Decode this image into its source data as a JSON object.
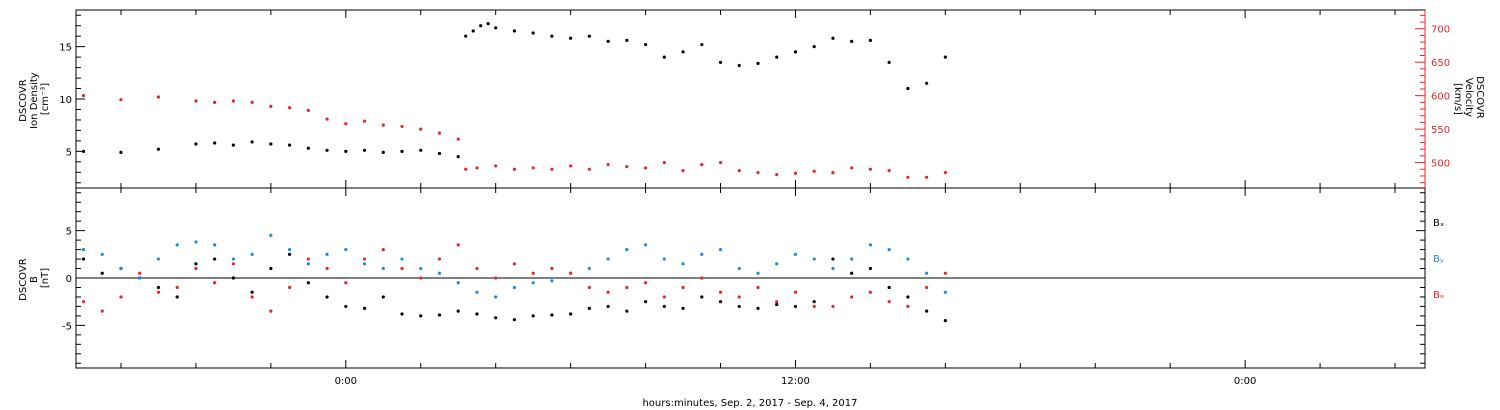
{
  "chart_data": [
    {
      "type": "scatter",
      "panel": "plasma",
      "y_left_label": [
        "DSCOVR",
        "Ion Density",
        "[cm⁻³]"
      ],
      "y_right_label": [
        "DSCOVR",
        "Velocity",
        "[km/s]"
      ],
      "x_range_hours": [
        -7.2,
        28.8
      ],
      "y_left_range": [
        1.5,
        18.5
      ],
      "y_right_range": [
        462,
        728
      ],
      "y_left_ticks": [
        "5",
        "10",
        "15"
      ],
      "y_right_ticks": [
        "500",
        "550",
        "600",
        "650",
        "700"
      ],
      "colors": {
        "density": "#000000",
        "velocity": "#e8262a"
      },
      "series": [
        {
          "axis": "left",
          "x": [
            -7.0,
            -6.0,
            -5.0,
            -4.0,
            -3.5,
            -3.0,
            -2.5,
            -2.0,
            -1.5,
            -1.0,
            -0.5,
            0.0,
            0.5,
            1.0,
            1.5,
            2.0,
            2.5,
            3.0,
            3.2,
            3.4,
            3.6,
            3.8,
            4.0,
            4.5,
            5.0,
            5.5,
            6.0,
            6.5,
            7.0,
            7.5,
            8.0,
            8.5,
            9.0,
            9.5,
            10.0,
            10.5,
            11.0,
            11.5,
            12.0,
            12.5,
            13.0,
            13.5,
            14.0,
            14.5,
            15.0,
            15.5,
            16.0
          ],
          "y": [
            5.0,
            4.9,
            5.2,
            5.7,
            5.8,
            5.6,
            5.9,
            5.7,
            5.6,
            5.3,
            5.1,
            5.0,
            5.1,
            4.9,
            5.0,
            5.1,
            4.8,
            4.5,
            16.0,
            16.5,
            17.0,
            17.2,
            16.8,
            16.5,
            16.3,
            16.0,
            15.8,
            16.0,
            15.5,
            15.6,
            15.2,
            14.0,
            14.5,
            15.2,
            13.5,
            13.2,
            13.4,
            14.0,
            14.5,
            15.0,
            15.8,
            15.5,
            15.6,
            13.5,
            11.0,
            11.5,
            14.0
          ]
        },
        {
          "axis": "right",
          "x": [
            -7.0,
            -6.0,
            -5.0,
            -4.0,
            -3.5,
            -3.0,
            -2.5,
            -2.0,
            -1.5,
            -1.0,
            -0.5,
            0.0,
            0.5,
            1.0,
            1.5,
            2.0,
            2.5,
            3.0,
            3.2,
            3.5,
            4.0,
            4.5,
            5.0,
            5.5,
            6.0,
            6.5,
            7.0,
            7.5,
            8.0,
            8.5,
            9.0,
            9.5,
            10.0,
            10.5,
            11.0,
            11.5,
            12.0,
            12.5,
            13.0,
            13.5,
            14.0,
            14.5,
            15.0,
            15.5,
            16.0
          ],
          "y": [
            600,
            594,
            598,
            592,
            590,
            592,
            590,
            584,
            582,
            578,
            565,
            558,
            562,
            556,
            554,
            550,
            544,
            535,
            490,
            492,
            495,
            490,
            492,
            490,
            495,
            490,
            497,
            494,
            492,
            500,
            488,
            497,
            500,
            488,
            485,
            482,
            484,
            487,
            485,
            492,
            490,
            488,
            478,
            478,
            485
          ]
        }
      ]
    },
    {
      "type": "scatter",
      "panel": "magnetic-field",
      "y_label": [
        "DSCOVR",
        "B",
        "[nT]"
      ],
      "x_range_hours": [
        -7.2,
        28.8
      ],
      "y_range": [
        -9.5,
        9.5
      ],
      "y_ticks": [
        "-5",
        "0",
        "5"
      ],
      "legend": [
        "Bₓ",
        "Bᵧ",
        "Bₔ"
      ],
      "x_ticks": [
        "0:00",
        "12:00",
        "0:00"
      ],
      "x_tick_hours": [
        0,
        12,
        24
      ],
      "x_label": "hours:minutes, Sep.  2, 2017 - Sep.  4, 2017",
      "colors": {
        "Bx": "#000000",
        "By": "#1e88e5",
        "Bz": "#e8262a"
      },
      "series": [
        {
          "name": "Bx",
          "x": [
            -7.0,
            -6.5,
            -6.0,
            -5.5,
            -5.0,
            -4.5,
            -4.0,
            -3.5,
            -3.0,
            -2.5,
            -2.0,
            -1.5,
            -1.0,
            -0.5,
            0.0,
            0.5,
            1.0,
            1.5,
            2.0,
            2.5,
            3.0,
            3.5,
            4.0,
            4.5,
            5.0,
            5.5,
            6.0,
            6.5,
            7.0,
            7.5,
            8.0,
            8.5,
            9.0,
            9.5,
            10.0,
            10.5,
            11.0,
            11.5,
            12.0,
            12.5,
            13.0,
            13.5,
            14.0,
            14.5,
            15.0,
            15.5,
            16.0
          ],
          "y": [
            2.0,
            0.5,
            1.0,
            0.0,
            -1.0,
            -2.0,
            1.5,
            2.0,
            0.0,
            -1.5,
            1.0,
            2.5,
            -0.5,
            -2.0,
            -3.0,
            -3.2,
            -2.0,
            -3.8,
            -4.0,
            -3.9,
            -3.5,
            -3.8,
            -4.2,
            -4.4,
            -4.0,
            -3.9,
            -3.8,
            -3.2,
            -3.0,
            -3.5,
            -2.5,
            -3.0,
            -3.2,
            -2.0,
            -2.5,
            -3.0,
            -3.2,
            -2.8,
            -3.0,
            -2.5,
            2.0,
            0.5,
            1.0,
            -1.0,
            -2.0,
            -3.5,
            -4.5
          ]
        },
        {
          "name": "By",
          "x": [
            -7.0,
            -6.5,
            -6.0,
            -5.5,
            -5.0,
            -4.5,
            -4.0,
            -3.5,
            -3.0,
            -2.5,
            -2.0,
            -1.5,
            -1.0,
            -0.5,
            0.0,
            0.5,
            1.0,
            1.5,
            2.0,
            2.5,
            3.0,
            3.5,
            4.0,
            4.5,
            5.0,
            5.5,
            6.0,
            6.5,
            7.0,
            7.5,
            8.0,
            8.5,
            9.0,
            9.5,
            10.0,
            10.5,
            11.0,
            11.5,
            12.0,
            12.5,
            13.0,
            13.5,
            14.0,
            14.5,
            15.0,
            15.5,
            16.0
          ],
          "y": [
            3.0,
            2.5,
            1.0,
            0.0,
            2.0,
            3.5,
            3.8,
            3.5,
            2.0,
            2.5,
            4.5,
            3.0,
            1.5,
            2.5,
            3.0,
            1.5,
            1.0,
            2.0,
            1.0,
            0.5,
            -0.5,
            -1.5,
            -2.0,
            -1.0,
            -0.5,
            -0.3,
            0.5,
            1.0,
            2.0,
            3.0,
            3.5,
            2.0,
            1.5,
            2.5,
            3.0,
            1.0,
            0.5,
            1.5,
            2.5,
            2.0,
            1.0,
            2.0,
            3.5,
            3.0,
            2.0,
            0.5,
            -1.5
          ]
        },
        {
          "name": "Bz",
          "x": [
            -7.0,
            -6.5,
            -6.0,
            -5.5,
            -5.0,
            -4.5,
            -4.0,
            -3.5,
            -3.0,
            -2.5,
            -2.0,
            -1.5,
            -1.0,
            -0.5,
            0.0,
            0.5,
            1.0,
            1.5,
            2.0,
            2.5,
            3.0,
            3.5,
            4.0,
            4.5,
            5.0,
            5.5,
            6.0,
            6.5,
            7.0,
            7.5,
            8.0,
            8.5,
            9.0,
            9.5,
            10.0,
            10.5,
            11.0,
            11.5,
            12.0,
            12.5,
            13.0,
            13.5,
            14.0,
            14.5,
            15.0,
            15.5,
            16.0
          ],
          "y": [
            -2.5,
            -3.5,
            -2.0,
            0.5,
            -1.5,
            -1.0,
            1.0,
            -0.5,
            1.5,
            -2.0,
            -3.5,
            -1.0,
            2.0,
            1.0,
            -0.5,
            2.0,
            3.0,
            1.0,
            0.0,
            2.0,
            3.5,
            1.0,
            0.0,
            1.5,
            0.5,
            1.0,
            0.5,
            -1.0,
            -1.5,
            -1.0,
            -0.5,
            -2.0,
            -1.0,
            0.0,
            -1.5,
            -2.0,
            -1.0,
            -2.5,
            -1.5,
            -3.0,
            -3.0,
            -2.0,
            -1.5,
            -2.5,
            -3.0,
            -1.0,
            0.5
          ]
        }
      ]
    }
  ]
}
